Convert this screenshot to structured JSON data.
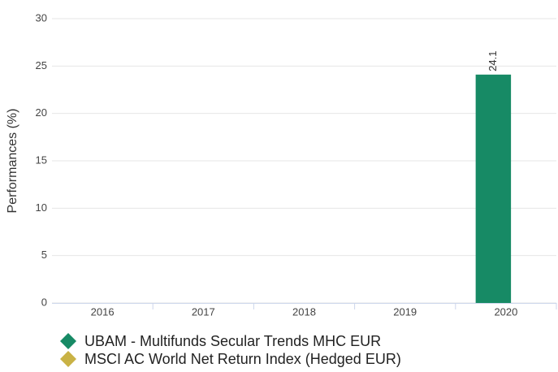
{
  "chart_data": {
    "type": "bar",
    "ylabel": "Performances (%)",
    "categories": [
      "2016",
      "2017",
      "2018",
      "2019",
      "2020"
    ],
    "series": [
      {
        "name": "UBAM - Multifunds Secular Trends MHC EUR",
        "color": "#178a65",
        "values": [
          null,
          null,
          null,
          null,
          24.1
        ]
      },
      {
        "name": "MSCI AC World Net Return Index (Hedged EUR)",
        "color": "#c9b245",
        "values": [
          null,
          null,
          null,
          null,
          null
        ]
      }
    ],
    "ylim": [
      0,
      30
    ],
    "yticks": [
      0,
      5,
      10,
      15,
      20,
      25,
      30
    ],
    "grid": true,
    "data_labels": true
  }
}
